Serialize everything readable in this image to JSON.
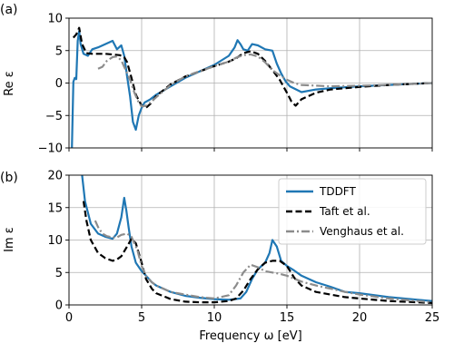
{
  "chart_data": [
    {
      "type": "line",
      "panel_tag": "(a)",
      "ylabel": "Re ε",
      "xlabel": "",
      "xlim": [
        0,
        25
      ],
      "ylim": [
        -10,
        10
      ],
      "xticks": [
        0,
        5,
        10,
        15,
        20,
        25
      ],
      "yticks": [
        -10,
        -5,
        0,
        5,
        10
      ],
      "grid": true,
      "series": [
        {
          "name": "TDDFT",
          "color": "#1f77b4",
          "style": "solid",
          "x": [
            0.2,
            0.3,
            0.4,
            0.5,
            0.6,
            0.7,
            0.8,
            1.0,
            1.3,
            1.6,
            2.0,
            2.5,
            3.0,
            3.3,
            3.6,
            3.8,
            4.0,
            4.2,
            4.4,
            4.6,
            4.8,
            5.0,
            5.2,
            5.6,
            6.0,
            7.0,
            8.0,
            9.0,
            10.0,
            11.0,
            11.4,
            11.6,
            11.8,
            12.0,
            12.3,
            12.6,
            13.0,
            13.5,
            14.0,
            14.3,
            14.6,
            14.9,
            15.2,
            16.0,
            17.0,
            18.0,
            20.0,
            22.0,
            24.0,
            25.0
          ],
          "y": [
            -10.0,
            0.2,
            0.8,
            0.6,
            6.5,
            8.0,
            6.0,
            4.5,
            4.2,
            5.2,
            5.5,
            6.0,
            6.5,
            5.2,
            5.8,
            4.2,
            1.0,
            -2.0,
            -6.0,
            -7.2,
            -5.0,
            -3.8,
            -3.0,
            -2.5,
            -1.8,
            -0.5,
            0.8,
            1.8,
            2.8,
            4.2,
            5.5,
            6.6,
            6.0,
            5.2,
            5.0,
            6.0,
            5.8,
            5.2,
            5.0,
            3.0,
            1.5,
            0.3,
            -0.5,
            -1.4,
            -1.0,
            -0.8,
            -0.5,
            -0.3,
            -0.1,
            0.0
          ]
        },
        {
          "name": "Taft et al.",
          "color": "#000000",
          "style": "dashed",
          "x": [
            0.3,
            0.5,
            0.7,
            0.9,
            1.2,
            1.6,
            2.0,
            2.5,
            3.0,
            3.5,
            3.8,
            4.0,
            4.3,
            4.6,
            5.0,
            5.3,
            5.6,
            6.0,
            7.0,
            8.0,
            9.0,
            10.0,
            11.0,
            11.5,
            12.0,
            12.5,
            13.0,
            13.5,
            14.0,
            14.5,
            15.0,
            15.3,
            15.6,
            16.0,
            17.0,
            18.0,
            20.0,
            22.0,
            24.0,
            25.0
          ],
          "y": [
            7.0,
            7.5,
            8.5,
            6.0,
            4.6,
            4.5,
            4.5,
            4.5,
            4.4,
            4.3,
            4.0,
            3.2,
            0.8,
            -1.8,
            -3.5,
            -3.8,
            -3.2,
            -2.0,
            -0.2,
            1.0,
            1.8,
            2.6,
            3.3,
            3.8,
            4.6,
            4.9,
            4.5,
            3.4,
            2.0,
            0.5,
            -1.5,
            -2.8,
            -3.5,
            -2.5,
            -1.5,
            -1.0,
            -0.6,
            -0.3,
            -0.1,
            0.0
          ]
        },
        {
          "name": "Venghaus et al.",
          "color": "#8c8c8c",
          "style": "dashdot",
          "x": [
            2.0,
            2.3,
            2.6,
            3.0,
            3.3,
            3.6,
            3.9,
            4.2,
            4.5,
            4.8,
            5.0,
            5.3,
            5.6,
            6.0,
            7.0,
            8.0,
            9.0,
            10.0,
            11.0,
            11.5,
            12.0,
            12.5,
            13.0,
            13.5,
            14.0,
            14.5,
            15.0,
            15.5,
            16.0,
            17.0,
            18.0,
            20.0,
            22.0,
            24.0,
            25.0
          ],
          "y": [
            2.2,
            2.5,
            3.4,
            4.0,
            4.1,
            3.5,
            2.0,
            0.5,
            -1.5,
            -3.0,
            -3.6,
            -3.5,
            -3.0,
            -2.2,
            -0.3,
            1.0,
            1.8,
            2.6,
            3.3,
            3.9,
            4.3,
            4.4,
            4.1,
            3.2,
            2.0,
            1.2,
            0.5,
            0.0,
            -0.3,
            -0.4,
            -0.5,
            -0.4,
            -0.3,
            -0.1,
            0.0
          ]
        }
      ]
    },
    {
      "type": "line",
      "panel_tag": "(b)",
      "ylabel": "Im ε",
      "xlabel": "Frequency ω [eV]",
      "xlim": [
        0,
        25
      ],
      "ylim": [
        0,
        20
      ],
      "xticks": [
        0,
        5,
        10,
        15,
        20,
        25
      ],
      "yticks": [
        0,
        5,
        10,
        15,
        20
      ],
      "grid": true,
      "legend": {
        "position": "upper right",
        "entries": [
          "TDDFT",
          "Taft et al.",
          "Venghaus et al."
        ]
      },
      "series": [
        {
          "name": "TDDFT",
          "color": "#1f77b4",
          "style": "solid",
          "x": [
            0.9,
            1.1,
            1.5,
            2.0,
            2.5,
            3.0,
            3.3,
            3.6,
            3.8,
            3.95,
            4.1,
            4.3,
            4.6,
            5.0,
            5.3,
            5.7,
            6.0,
            7.0,
            8.0,
            9.0,
            10.0,
            11.0,
            11.8,
            12.2,
            12.6,
            13.0,
            13.5,
            13.8,
            14.0,
            14.3,
            14.6,
            15.0,
            15.5,
            16.0,
            17.0,
            18.0,
            19.0,
            20.0,
            22.0,
            24.0,
            25.0
          ],
          "y": [
            20.0,
            16.0,
            12.5,
            11.0,
            10.5,
            10.2,
            11.0,
            13.5,
            16.5,
            14.5,
            12.0,
            9.0,
            6.5,
            5.2,
            4.5,
            3.5,
            3.0,
            2.0,
            1.4,
            1.1,
            0.9,
            0.8,
            1.0,
            2.0,
            4.0,
            5.5,
            6.5,
            8.0,
            10.0,
            9.0,
            6.8,
            6.0,
            5.3,
            4.5,
            3.5,
            2.8,
            2.0,
            1.8,
            1.2,
            0.8,
            0.6
          ]
        },
        {
          "name": "Taft et al.",
          "color": "#000000",
          "style": "dashed",
          "x": [
            1.0,
            1.2,
            1.5,
            2.0,
            2.5,
            3.0,
            3.3,
            3.6,
            4.0,
            4.3,
            4.6,
            5.0,
            5.3,
            5.7,
            6.0,
            7.0,
            8.0,
            9.0,
            10.0,
            11.0,
            11.5,
            12.0,
            12.5,
            13.0,
            13.5,
            14.0,
            14.5,
            15.0,
            15.5,
            16.0,
            17.0,
            18.0,
            19.0,
            20.0,
            22.0,
            24.0,
            25.0
          ],
          "y": [
            16.0,
            13.0,
            10.0,
            8.0,
            7.2,
            6.8,
            7.0,
            7.5,
            9.0,
            10.2,
            9.5,
            6.5,
            4.0,
            2.5,
            1.8,
            0.9,
            0.5,
            0.4,
            0.4,
            0.6,
            1.0,
            2.2,
            4.0,
            5.5,
            6.5,
            6.8,
            6.8,
            6.0,
            4.2,
            3.0,
            2.0,
            1.6,
            1.2,
            1.0,
            0.6,
            0.4,
            0.3
          ]
        },
        {
          "name": "Venghaus et al.",
          "color": "#8c8c8c",
          "style": "dashdot",
          "x": [
            1.8,
            2.0,
            2.3,
            2.6,
            3.0,
            3.3,
            3.6,
            4.0,
            4.3,
            4.7,
            5.0,
            5.3,
            5.7,
            6.0,
            7.0,
            8.0,
            9.0,
            10.0,
            11.0,
            11.5,
            12.0,
            12.5,
            13.0,
            13.5,
            14.0,
            14.5,
            15.0,
            16.0,
            17.0,
            18.0,
            19.0,
            20.0,
            22.0,
            24.0,
            25.0
          ],
          "y": [
            13.0,
            12.0,
            11.0,
            10.6,
            10.4,
            10.4,
            10.8,
            11.0,
            10.5,
            8.5,
            6.0,
            4.5,
            3.5,
            3.0,
            2.0,
            1.6,
            1.2,
            1.0,
            1.5,
            3.0,
            5.0,
            6.2,
            5.8,
            5.2,
            5.0,
            4.8,
            4.5,
            3.6,
            3.0,
            2.5,
            2.0,
            1.6,
            1.0,
            0.6,
            0.4
          ]
        }
      ]
    }
  ]
}
